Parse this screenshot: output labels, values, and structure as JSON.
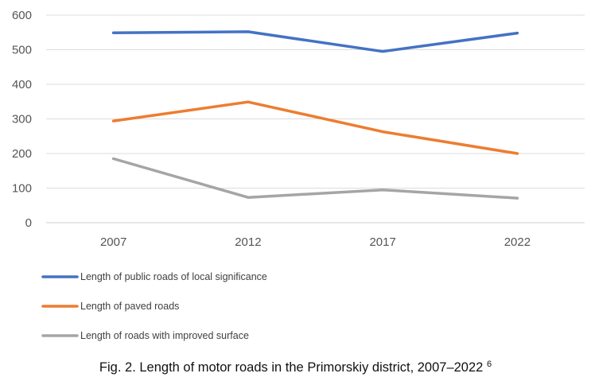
{
  "chart_data": {
    "type": "line",
    "categories": [
      "2007",
      "2012",
      "2017",
      "2022"
    ],
    "series": [
      {
        "name": "Length of public roads of local significance",
        "values": [
          549,
          552,
          495,
          548
        ],
        "color": "#4472c4"
      },
      {
        "name": "Length of paved roads",
        "values": [
          294,
          349,
          263,
          200
        ],
        "color": "#ed7d31"
      },
      {
        "name": "Length of roads with improved surface",
        "values": [
          185,
          73,
          95,
          71
        ],
        "color": "#a5a5a5"
      }
    ],
    "ylim": [
      0,
      600
    ],
    "yticks": [
      "0",
      "100",
      "200",
      "300",
      "400",
      "500",
      "600"
    ],
    "grid": true,
    "legend_position": "bottom-left"
  },
  "caption": {
    "text": "Fig. 2. Length of motor roads in the Primorskiy district, 2007–2022",
    "footnote": "6"
  }
}
